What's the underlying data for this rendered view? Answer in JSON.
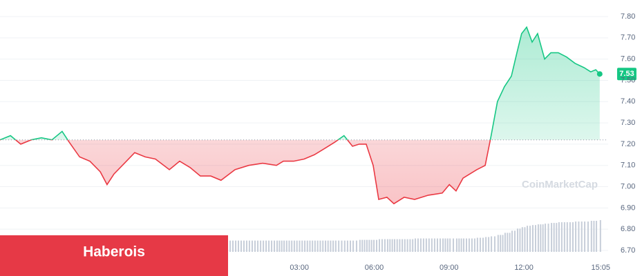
{
  "chart_data": {
    "type": "line",
    "x": [
      -9.0,
      -8.58,
      -8.17,
      -7.75,
      -7.34,
      -6.92,
      -6.51,
      -6.23,
      -5.81,
      -5.4,
      -4.98,
      -4.71,
      -4.43,
      -4.01,
      -3.6,
      -3.18,
      -2.77,
      -2.21,
      -1.8,
      -1.38,
      -0.97,
      -0.55,
      -0.14,
      0.42,
      0.97,
      1.53,
      2.08,
      2.36,
      2.77,
      3.19,
      3.6,
      4.02,
      4.43,
      4.79,
      5.13,
      5.4,
      5.68,
      5.96,
      6.18,
      6.51,
      6.79,
      7.2,
      7.62,
      8.17,
      8.73,
      9.01,
      9.28,
      9.56,
      10.11,
      10.45,
      10.67,
      10.94,
      11.22,
      11.5,
      11.72,
      11.91,
      12.11,
      12.33,
      12.55,
      12.83,
      13.08,
      13.38,
      13.71,
      14.05,
      14.41,
      14.68,
      14.88,
      15.04
    ],
    "series": [
      {
        "values": [
          7.22,
          7.24,
          7.2,
          7.22,
          7.23,
          7.22,
          7.26,
          7.21,
          7.14,
          7.12,
          7.07,
          7.01,
          7.06,
          7.11,
          7.16,
          7.14,
          7.13,
          7.08,
          7.12,
          7.09,
          7.05,
          7.05,
          7.03,
          7.08,
          7.1,
          7.11,
          7.1,
          7.12,
          7.12,
          7.13,
          7.15,
          7.18,
          7.21,
          7.24,
          7.19,
          7.2,
          7.2,
          7.1,
          6.94,
          6.95,
          6.92,
          6.95,
          6.94,
          6.96,
          6.97,
          7.01,
          6.98,
          7.04,
          7.08,
          7.1,
          7.23,
          7.4,
          7.47,
          7.52,
          7.63,
          7.72,
          7.75,
          7.68,
          7.72,
          7.6,
          7.63,
          7.63,
          7.61,
          7.58,
          7.56,
          7.54,
          7.55,
          7.53
        ],
        "volume": [
          14,
          14,
          14,
          14,
          14,
          14,
          14,
          14,
          14,
          15,
          15,
          15,
          15,
          15,
          15,
          15,
          15,
          15,
          16,
          16,
          16,
          16,
          16,
          16,
          16,
          16,
          16,
          16,
          16,
          16,
          16,
          16,
          16,
          16,
          16,
          17,
          17,
          17,
          18,
          18,
          18,
          18,
          19,
          19,
          19,
          19,
          19,
          19,
          20,
          21,
          22,
          24,
          27,
          30,
          33,
          35,
          37,
          38,
          39,
          40,
          41,
          42,
          42,
          43,
          43,
          44,
          44,
          45
        ]
      }
    ],
    "up_color": "#16c784",
    "down_color": "#ea3943",
    "baseline": 7.22,
    "current_price": 7.53,
    "xlim": [
      -9,
      15.1
    ],
    "xticks": [
      {
        "value": 3,
        "label": "03:00"
      },
      {
        "value": 6,
        "label": "06:00"
      },
      {
        "value": 9,
        "label": "09:00"
      },
      {
        "value": 12,
        "label": "12:00"
      },
      {
        "value": 15.08,
        "label": "15:05"
      }
    ],
    "ylim": [
      6.65,
      7.85
    ],
    "yticks": [
      {
        "value": 6.7,
        "label": "6.70"
      },
      {
        "value": 6.8,
        "label": "6.80"
      },
      {
        "value": 6.9,
        "label": "6.90"
      },
      {
        "value": 7.0,
        "label": "7.00"
      },
      {
        "value": 7.1,
        "label": "7.10"
      },
      {
        "value": 7.2,
        "label": "7.20"
      },
      {
        "value": 7.3,
        "label": "7.30"
      },
      {
        "value": 7.4,
        "label": "7.40"
      },
      {
        "value": 7.5,
        "label": "7.50"
      },
      {
        "value": 7.6,
        "label": "7.60"
      },
      {
        "value": 7.7,
        "label": "7.70"
      },
      {
        "value": 7.8,
        "label": "7.80"
      }
    ],
    "grid": true,
    "watermark": "CoinMarketCap"
  },
  "banner": "Haberois"
}
